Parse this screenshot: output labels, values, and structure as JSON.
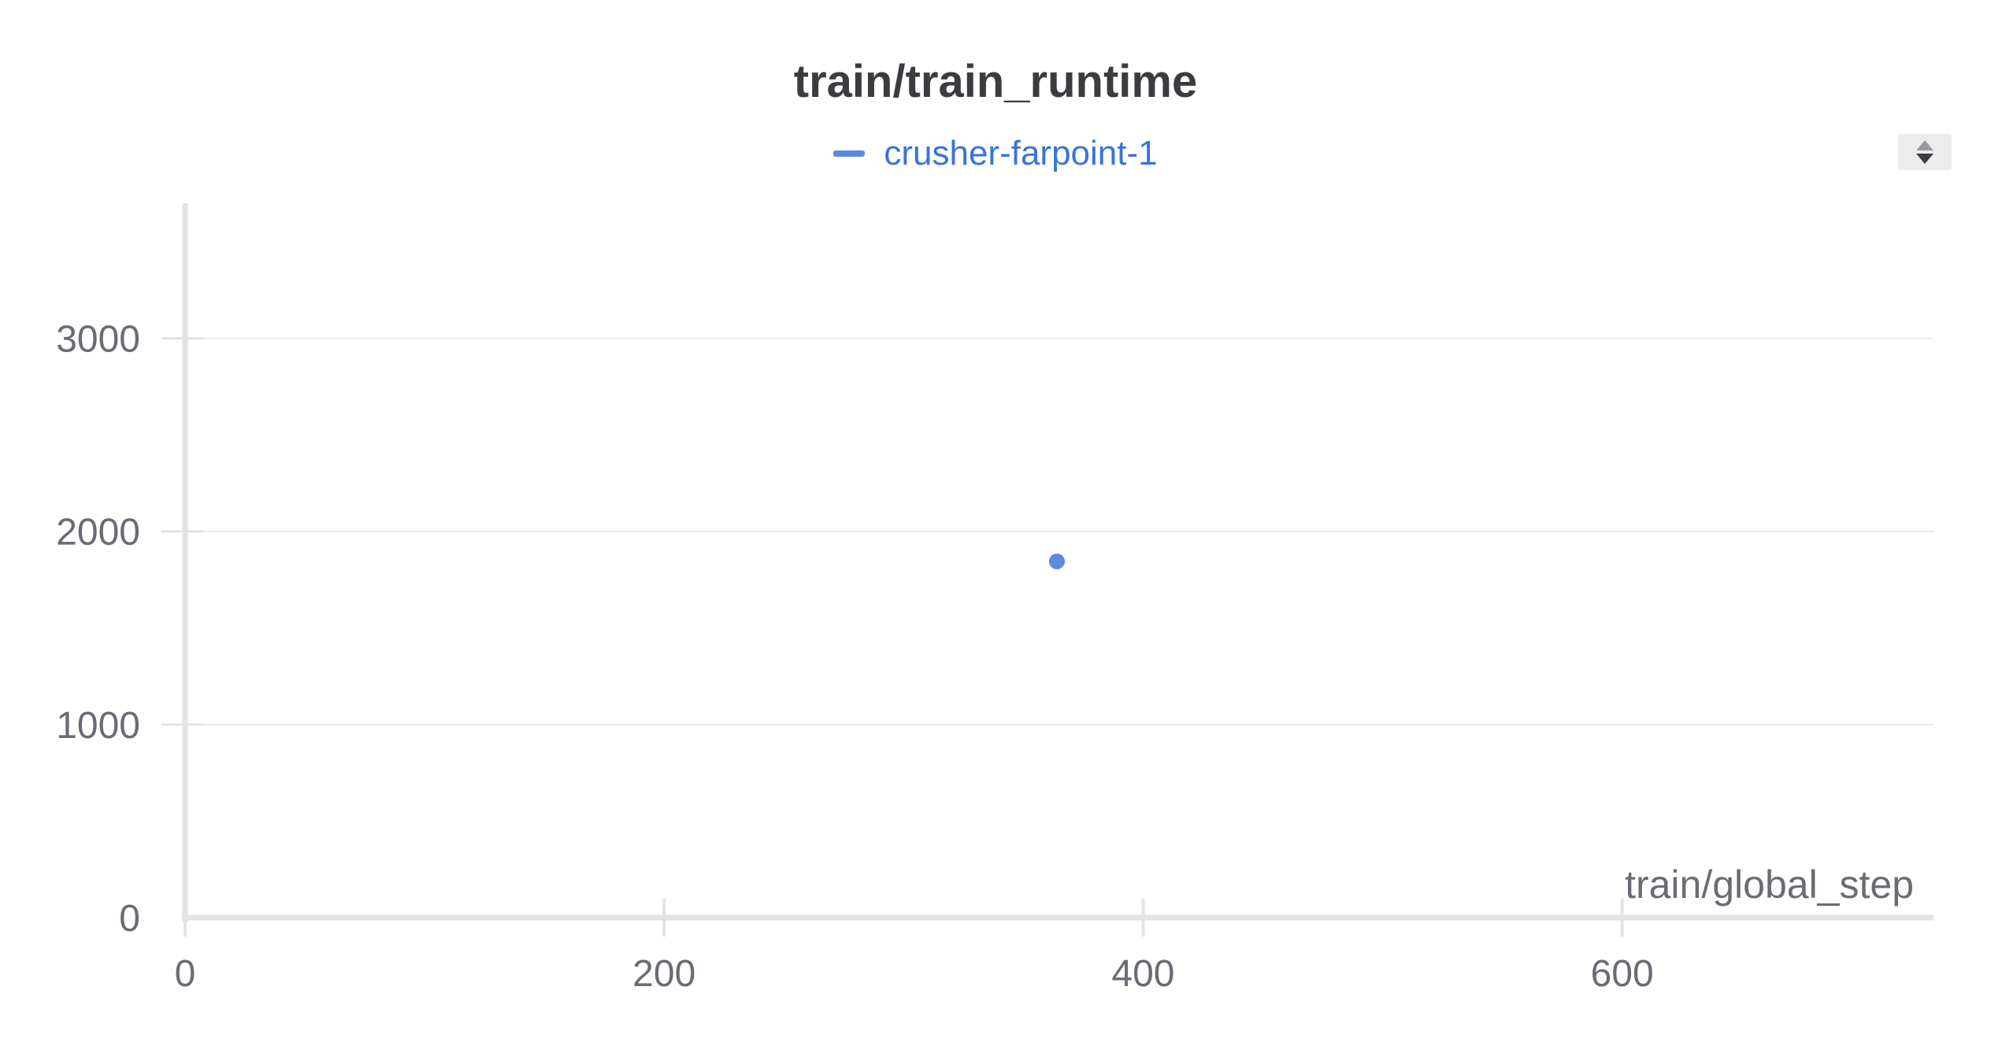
{
  "chart_data": {
    "type": "scatter",
    "title": "train/train_runtime",
    "xlabel": "train/global_step",
    "ylabel": "",
    "xlim": [
      0,
      730
    ],
    "ylim": [
      0,
      3700
    ],
    "xticks": [
      0,
      200,
      400,
      600
    ],
    "yticks": [
      0,
      1000,
      2000,
      3000
    ],
    "xtick_labels": [
      "0",
      "200",
      "400",
      "600"
    ],
    "ytick_labels": [
      "0",
      "1000",
      "2000",
      "3000"
    ],
    "grid": "horizontal",
    "legend_position": "top-center",
    "series": [
      {
        "name": "crusher-farpoint-1",
        "color": "#5a8bdc",
        "x": [
          364
        ],
        "y": [
          1845
        ]
      }
    ]
  },
  "legend": {
    "entries": [
      {
        "label": "crusher-farpoint-1",
        "color": "#5a8bdc"
      }
    ]
  },
  "controls": {
    "sort_icon": "sort-updown-icon"
  },
  "colors": {
    "axis": "#e3e3e3",
    "grid": "#ececec",
    "tick_text": "#6b6b76",
    "title": "#3b3b40",
    "legend_text": "#3b73d6"
  }
}
